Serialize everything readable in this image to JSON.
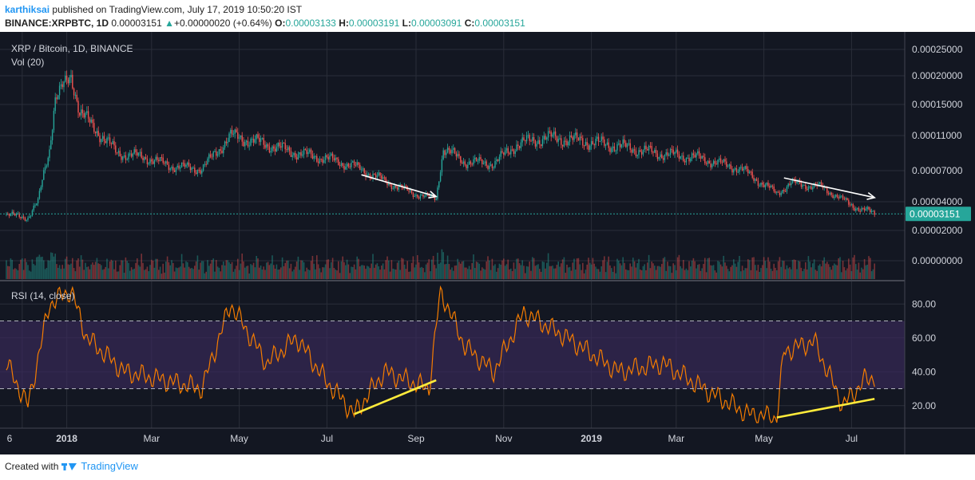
{
  "header": {
    "user": "karthiksai",
    "published_text": "published on TradingView.com, July 17, 2019 10:50:20 IST",
    "symbol": "BINANCE:XRPBTC, 1D",
    "price": "0.00003151",
    "change": "+0.00000020 (+0.64%)",
    "open_label": "O:",
    "open": "0.00003133",
    "high_label": "H:",
    "high": "0.00003191",
    "low_label": "L:",
    "low": "0.00003091",
    "close_label": "C:",
    "close": "0.00003151"
  },
  "footer": {
    "created_with": "Created with",
    "brand": "TradingView"
  },
  "colors": {
    "up": "#26a69a",
    "down": "#ef5350",
    "rsi_line": "#f57c00",
    "rsi_band": "#3b2a5c",
    "pane_bg": "#131722",
    "grid": "#2a2e39",
    "price_line": "#26a69a",
    "trend_white": "#ffffff",
    "trend_yellow": "#ffeb3b"
  },
  "chart_data": {
    "type": "candlestick",
    "main_pane": {
      "title": "XRP / Bitcoin, 1D, BINANCE",
      "volume_label": "Vol (20)",
      "y_ticks": [
        "0.00025000",
        "0.00020000",
        "0.00015000",
        "0.00011000",
        "0.00007000",
        "0.00004000",
        "0.00002000",
        "0.00000000"
      ],
      "current_price_label": "0.00003151",
      "current_price": 3.151e-05,
      "approx_path": [
        [
          "2017-11-20",
          3.1e-05
        ],
        [
          "2017-12-05",
          2.9e-05
        ],
        [
          "2017-12-12",
          4e-05
        ],
        [
          "2017-12-20",
          9.5e-05
        ],
        [
          "2017-12-24",
          0.00016
        ],
        [
          "2018-01-04",
          0.0002
        ],
        [
          "2018-01-10",
          0.00014
        ],
        [
          "2018-01-20",
          0.00012
        ],
        [
          "2018-02-05",
          9e-05
        ],
        [
          "2018-02-25",
          8.5e-05
        ],
        [
          "2018-03-15",
          7.5e-05
        ],
        [
          "2018-04-05",
          7.2e-05
        ],
        [
          "2018-04-25",
          0.00011
        ],
        [
          "2018-05-20",
          0.0001
        ],
        [
          "2018-06-10",
          9e-05
        ],
        [
          "2018-06-30",
          8.4e-05
        ],
        [
          "2018-07-20",
          7.5e-05
        ],
        [
          "2018-08-10",
          6e-05
        ],
        [
          "2018-08-30",
          4.8e-05
        ],
        [
          "2018-09-15",
          4.3e-05
        ],
        [
          "2018-09-20",
          9.5e-05
        ],
        [
          "2018-10-05",
          8e-05
        ],
        [
          "2018-10-25",
          7.8e-05
        ],
        [
          "2018-11-10",
          0.0001
        ],
        [
          "2018-12-01",
          0.000108
        ],
        [
          "2018-12-25",
          0.000104
        ],
        [
          "2019-01-20",
          9.8e-05
        ],
        [
          "2019-02-15",
          9e-05
        ],
        [
          "2019-03-15",
          8.5e-05
        ],
        [
          "2019-04-15",
          7.2e-05
        ],
        [
          "2019-05-10",
          4.8e-05
        ],
        [
          "2019-05-20",
          5.8e-05
        ],
        [
          "2019-06-10",
          5.4e-05
        ],
        [
          "2019-06-30",
          3.8e-05
        ],
        [
          "2019-07-17",
          3.15e-05
        ]
      ]
    },
    "rsi_pane": {
      "title": "RSI (14, close)",
      "y_ticks": [
        "80.00",
        "60.00",
        "40.00",
        "20.00"
      ],
      "upper_band": 70,
      "lower_band": 30,
      "approx_path": [
        [
          "2017-11-20",
          45
        ],
        [
          "2017-12-05",
          20
        ],
        [
          "2017-12-20",
          80
        ],
        [
          "2018-01-04",
          88
        ],
        [
          "2018-01-15",
          60
        ],
        [
          "2018-02-10",
          40
        ],
        [
          "2018-03-10",
          35
        ],
        [
          "2018-04-05",
          30
        ],
        [
          "2018-04-25",
          80
        ],
        [
          "2018-05-20",
          45
        ],
        [
          "2018-06-10",
          60
        ],
        [
          "2018-06-30",
          35
        ],
        [
          "2018-07-20",
          15
        ],
        [
          "2018-08-10",
          40
        ],
        [
          "2018-09-10",
          30
        ],
        [
          "2018-09-18",
          88
        ],
        [
          "2018-10-05",
          55
        ],
        [
          "2018-10-25",
          40
        ],
        [
          "2018-11-15",
          75
        ],
        [
          "2018-12-15",
          60
        ],
        [
          "2019-01-20",
          40
        ],
        [
          "2019-02-20",
          45
        ],
        [
          "2019-03-20",
          30
        ],
        [
          "2019-04-20",
          15
        ],
        [
          "2019-05-10",
          13
        ],
        [
          "2019-05-15",
          52
        ],
        [
          "2019-06-05",
          58
        ],
        [
          "2019-06-25",
          20
        ],
        [
          "2019-07-10",
          35
        ],
        [
          "2019-07-17",
          37
        ]
      ]
    },
    "x_ticks": [
      "6",
      "2018",
      "Mar",
      "May",
      "Jul",
      "Sep",
      "Nov",
      "2019",
      "Mar",
      "May",
      "Jul"
    ],
    "annotations": [
      {
        "pane": "main",
        "type": "arrow",
        "color": "white",
        "from": [
          "2018-07-25",
          6.6e-05
        ],
        "to": [
          "2018-09-15",
          4.5e-05
        ]
      },
      {
        "pane": "main",
        "type": "arrow",
        "color": "white",
        "from": [
          "2019-05-15",
          6.3e-05
        ],
        "to": [
          "2019-07-17",
          4.4e-05
        ]
      },
      {
        "pane": "rsi",
        "type": "line",
        "color": "yellow",
        "from": [
          "2018-07-20",
          15
        ],
        "to": [
          "2018-09-15",
          35
        ]
      },
      {
        "pane": "rsi",
        "type": "line",
        "color": "yellow",
        "from": [
          "2019-05-10",
          13
        ],
        "to": [
          "2019-07-17",
          24
        ]
      }
    ]
  }
}
